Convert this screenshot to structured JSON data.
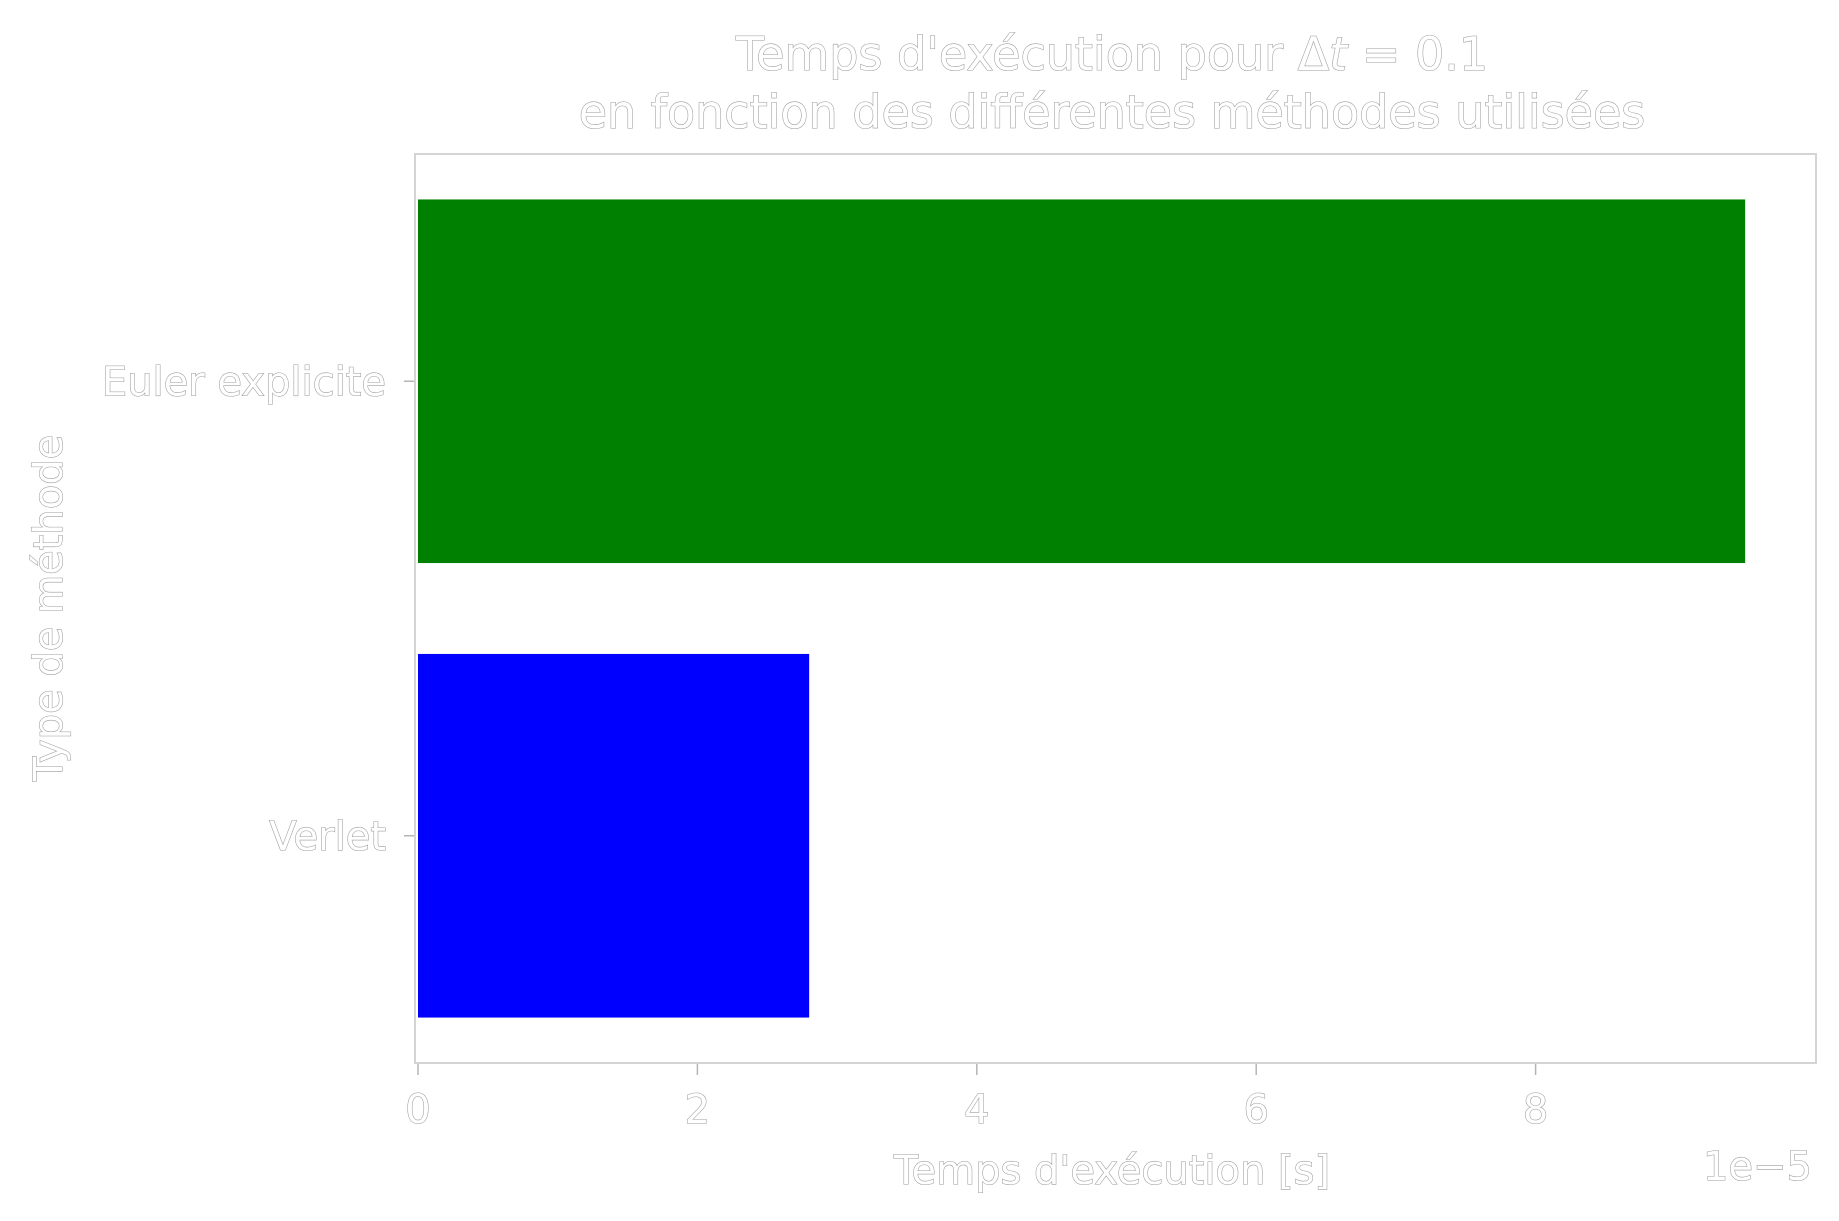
{
  "chart_data": {
    "type": "bar",
    "orientation": "horizontal",
    "title_line1_prefix": "Temps d'exécution pour ",
    "title_line1_delta": "Δ",
    "title_line1_var": "t",
    "title_line1_suffix": " = 0.1",
    "title_line2": "en fonction des différentes méthodes utilisées",
    "xlabel": "Temps d'exécution [s]",
    "ylabel": "Type de méthode",
    "x_offset_label": "1e−5",
    "x_scale": 1e-05,
    "xlim": [
      0,
      10.0
    ],
    "xticks": [
      0,
      2,
      4,
      6,
      8
    ],
    "xtick_labels": [
      "0",
      "2",
      "4",
      "6",
      "8"
    ],
    "categories": [
      "Euler explicite",
      "Verlet"
    ],
    "values": [
      9.5e-05,
      2.8e-05
    ],
    "colors": [
      "#008000",
      "#0000ff"
    ],
    "grid": false,
    "legend": "none"
  }
}
